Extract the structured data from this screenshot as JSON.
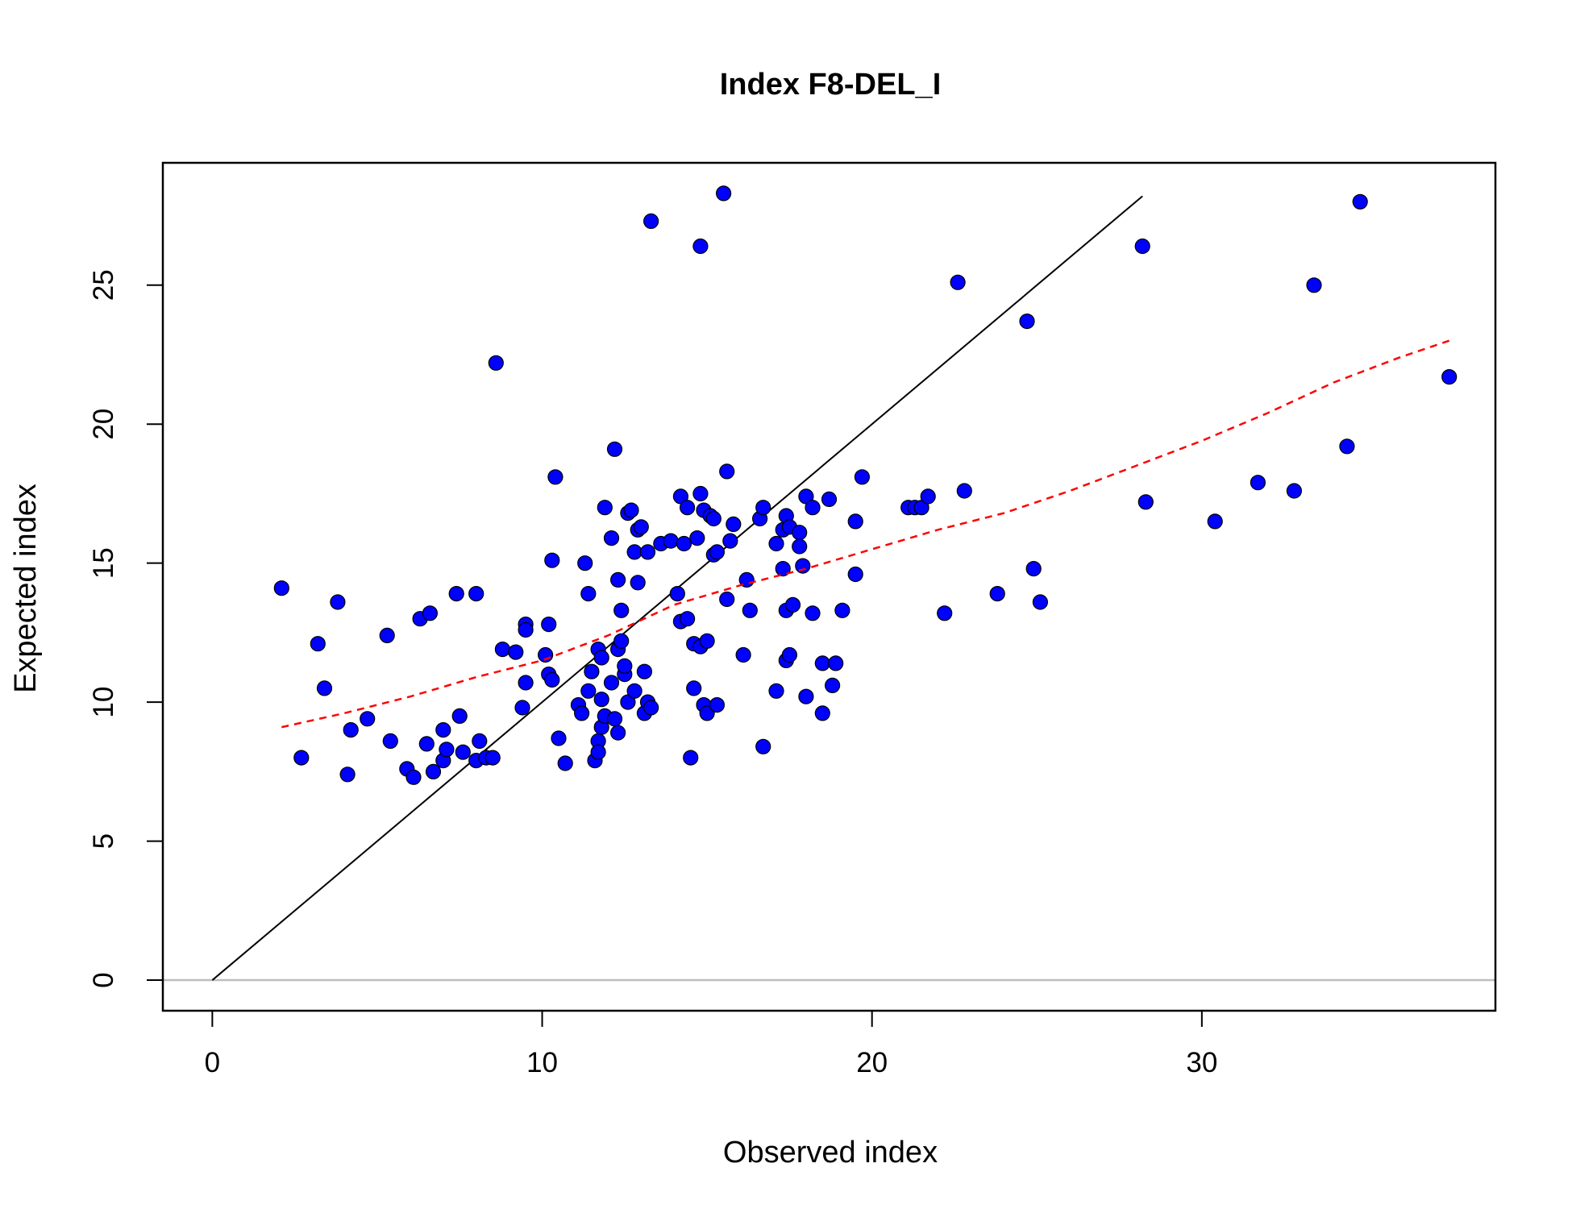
{
  "chart_data": {
    "type": "scatter",
    "title": "Index F8-DEL_I",
    "xlabel": "Observed index",
    "ylabel": "Expected index",
    "xlim": [
      -1.5,
      38.9
    ],
    "ylim": [
      -1.1,
      29.4
    ],
    "x_ticks": [
      0,
      10,
      20,
      30
    ],
    "y_ticks": [
      0,
      5,
      10,
      15,
      20,
      25
    ],
    "grid": false,
    "legend": "none",
    "colors": {
      "points": "#0000ff",
      "point_outline": "#000000",
      "identity_line": "#000000",
      "smooth_line": "#ff0000",
      "zero_line": "#bebebe"
    },
    "points": [
      [
        2.1,
        14.1
      ],
      [
        2.7,
        8.0
      ],
      [
        3.2,
        12.1
      ],
      [
        3.4,
        10.5
      ],
      [
        3.8,
        13.6
      ],
      [
        4.1,
        7.4
      ],
      [
        4.2,
        9.0
      ],
      [
        4.7,
        9.4
      ],
      [
        5.3,
        12.4
      ],
      [
        5.4,
        8.6
      ],
      [
        5.9,
        7.6
      ],
      [
        6.1,
        7.3
      ],
      [
        6.3,
        13.0
      ],
      [
        6.5,
        8.5
      ],
      [
        6.6,
        13.2
      ],
      [
        6.7,
        7.5
      ],
      [
        7.0,
        9.0
      ],
      [
        7.0,
        7.9
      ],
      [
        7.1,
        8.3
      ],
      [
        7.4,
        13.9
      ],
      [
        7.5,
        9.5
      ],
      [
        7.6,
        8.2
      ],
      [
        8.0,
        13.9
      ],
      [
        8.0,
        7.9
      ],
      [
        8.1,
        8.6
      ],
      [
        8.3,
        8.0
      ],
      [
        8.5,
        8.0
      ],
      [
        8.6,
        22.2
      ],
      [
        8.8,
        11.9
      ],
      [
        9.2,
        11.8
      ],
      [
        9.4,
        9.8
      ],
      [
        9.5,
        12.8
      ],
      [
        9.5,
        10.7
      ],
      [
        9.5,
        12.6
      ],
      [
        10.1,
        11.7
      ],
      [
        10.2,
        12.8
      ],
      [
        10.2,
        11.0
      ],
      [
        10.3,
        10.8
      ],
      [
        10.3,
        15.1
      ],
      [
        10.4,
        18.1
      ],
      [
        10.5,
        8.7
      ],
      [
        10.7,
        7.8
      ],
      [
        11.1,
        9.9
      ],
      [
        11.2,
        9.6
      ],
      [
        11.3,
        15.0
      ],
      [
        11.4,
        10.4
      ],
      [
        11.4,
        13.9
      ],
      [
        11.5,
        11.1
      ],
      [
        11.6,
        7.9
      ],
      [
        11.7,
        8.6
      ],
      [
        11.7,
        8.2
      ],
      [
        11.7,
        11.9
      ],
      [
        11.8,
        11.6
      ],
      [
        11.8,
        10.1
      ],
      [
        11.8,
        9.1
      ],
      [
        11.9,
        17.0
      ],
      [
        11.9,
        9.5
      ],
      [
        12.1,
        15.9
      ],
      [
        12.1,
        10.7
      ],
      [
        12.2,
        9.4
      ],
      [
        12.2,
        19.1
      ],
      [
        12.3,
        8.9
      ],
      [
        12.3,
        14.4
      ],
      [
        12.3,
        11.9
      ],
      [
        12.4,
        13.3
      ],
      [
        12.4,
        12.2
      ],
      [
        12.5,
        11.0
      ],
      [
        12.5,
        11.3
      ],
      [
        12.6,
        16.8
      ],
      [
        12.6,
        10.0
      ],
      [
        12.7,
        16.9
      ],
      [
        12.8,
        15.4
      ],
      [
        12.8,
        10.4
      ],
      [
        12.9,
        16.2
      ],
      [
        12.9,
        14.3
      ],
      [
        13.0,
        16.3
      ],
      [
        13.1,
        11.1
      ],
      [
        13.1,
        9.6
      ],
      [
        13.2,
        15.4
      ],
      [
        13.2,
        10.0
      ],
      [
        13.3,
        9.8
      ],
      [
        13.3,
        27.3
      ],
      [
        13.6,
        15.7
      ],
      [
        13.9,
        15.8
      ],
      [
        14.1,
        13.9
      ],
      [
        14.2,
        12.9
      ],
      [
        14.2,
        17.4
      ],
      [
        14.3,
        15.7
      ],
      [
        14.4,
        13.0
      ],
      [
        14.4,
        17.0
      ],
      [
        14.5,
        8.0
      ],
      [
        14.6,
        10.5
      ],
      [
        14.6,
        12.1
      ],
      [
        14.7,
        15.9
      ],
      [
        14.8,
        12.0
      ],
      [
        14.8,
        26.4
      ],
      [
        14.8,
        17.5
      ],
      [
        14.9,
        16.9
      ],
      [
        14.9,
        9.9
      ],
      [
        15.0,
        9.6
      ],
      [
        15.0,
        12.2
      ],
      [
        15.1,
        16.7
      ],
      [
        15.2,
        16.6
      ],
      [
        15.2,
        15.3
      ],
      [
        15.3,
        15.4
      ],
      [
        15.3,
        9.9
      ],
      [
        15.5,
        28.3
      ],
      [
        15.6,
        18.3
      ],
      [
        15.6,
        13.7
      ],
      [
        15.7,
        15.8
      ],
      [
        15.8,
        16.4
      ],
      [
        16.1,
        11.7
      ],
      [
        16.2,
        14.4
      ],
      [
        16.3,
        13.3
      ],
      [
        16.6,
        16.6
      ],
      [
        16.7,
        17.0
      ],
      [
        16.7,
        8.4
      ],
      [
        17.1,
        15.7
      ],
      [
        17.1,
        10.4
      ],
      [
        17.3,
        14.8
      ],
      [
        17.3,
        16.2
      ],
      [
        17.4,
        16.7
      ],
      [
        17.4,
        13.3
      ],
      [
        17.4,
        11.5
      ],
      [
        17.5,
        16.3
      ],
      [
        17.5,
        11.7
      ],
      [
        17.6,
        13.5
      ],
      [
        17.8,
        16.1
      ],
      [
        17.8,
        15.6
      ],
      [
        17.9,
        14.9
      ],
      [
        18.0,
        10.2
      ],
      [
        18.0,
        17.4
      ],
      [
        18.2,
        13.2
      ],
      [
        18.2,
        17.0
      ],
      [
        18.5,
        9.6
      ],
      [
        18.5,
        11.4
      ],
      [
        18.7,
        17.3
      ],
      [
        18.8,
        10.6
      ],
      [
        18.9,
        11.4
      ],
      [
        19.1,
        13.3
      ],
      [
        19.5,
        16.5
      ],
      [
        19.5,
        14.6
      ],
      [
        19.7,
        18.1
      ],
      [
        21.1,
        17.0
      ],
      [
        21.3,
        17.0
      ],
      [
        21.5,
        17.0
      ],
      [
        21.7,
        17.4
      ],
      [
        22.2,
        13.2
      ],
      [
        22.6,
        25.1
      ],
      [
        22.8,
        17.6
      ],
      [
        23.8,
        13.9
      ],
      [
        24.7,
        23.7
      ],
      [
        24.9,
        14.8
      ],
      [
        25.1,
        13.6
      ],
      [
        28.2,
        26.4
      ],
      [
        28.3,
        17.2
      ],
      [
        30.4,
        16.5
      ],
      [
        31.7,
        17.9
      ],
      [
        32.8,
        17.6
      ],
      [
        33.4,
        25.0
      ],
      [
        34.4,
        19.2
      ],
      [
        34.8,
        28.0
      ],
      [
        37.5,
        21.7
      ]
    ],
    "identity_line": {
      "x": [
        0,
        28.2
      ],
      "y": [
        0,
        28.2
      ]
    },
    "smooth_line": {
      "x": [
        2.1,
        4,
        6,
        8,
        10,
        12,
        14,
        16,
        18,
        20,
        22,
        24,
        26,
        28,
        30,
        32,
        34,
        36,
        37.5
      ],
      "y": [
        9.1,
        9.6,
        10.2,
        10.9,
        11.5,
        12.4,
        13.5,
        14.2,
        14.8,
        15.5,
        16.2,
        16.8,
        17.6,
        18.5,
        19.4,
        20.4,
        21.5,
        22.4,
        23.0
      ]
    },
    "zero_line_y": 0
  }
}
